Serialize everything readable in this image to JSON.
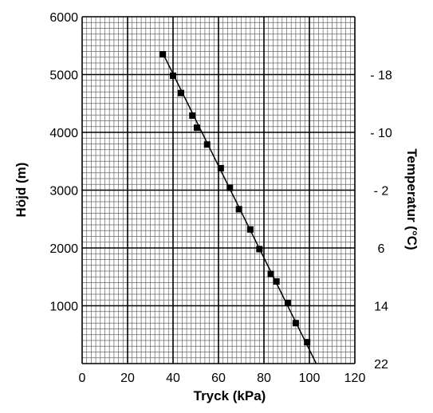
{
  "chart_data": {
    "type": "scatter",
    "xlabel": "Tryck (kPa)",
    "ylabel": "Höjd (m)",
    "y2label": "Temperatur (°C)",
    "xlim": [
      0,
      120
    ],
    "ylim": [
      0,
      6000
    ],
    "x_ticks": [
      "0",
      "20",
      "40",
      "60",
      "80",
      "100",
      "120"
    ],
    "y_ticks": [
      "6000",
      "5000",
      "4000",
      "3000",
      "2000",
      "1000"
    ],
    "y2_ticks": [
      {
        "label": "- 18",
        "height": 5000
      },
      {
        "label": "- 10",
        "height": 4000
      },
      {
        "label": "- 2",
        "height": 3000
      },
      {
        "label": "6",
        "height": 2000
      },
      {
        "label": "14",
        "height": 1000
      },
      {
        "label": "22",
        "height": 0
      }
    ],
    "grid": true,
    "series": [
      {
        "x": [
          35.5,
          40,
          43.5,
          48.5,
          50.5,
          55,
          61,
          65,
          69,
          74,
          78,
          83,
          85.5,
          90.5,
          94,
          99
        ],
        "y": [
          5350,
          4980,
          4680,
          4290,
          4080,
          3790,
          3380,
          3040,
          2670,
          2320,
          1980,
          1550,
          1420,
          1050,
          700,
          370
        ]
      }
    ],
    "fit_line": {
      "x": [
        35.5,
        103
      ],
      "y": [
        5370,
        0
      ]
    }
  }
}
